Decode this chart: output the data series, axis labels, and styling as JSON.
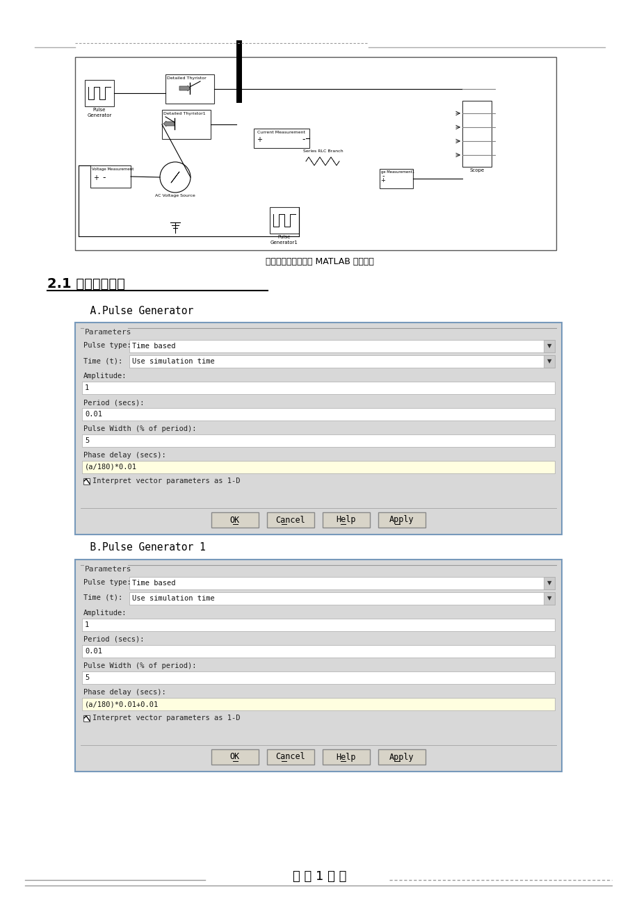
{
  "page_bg": "#ffffff",
  "caption": "单相交流调压电路的 MATLAB 俯真模型",
  "section_title": "2.1 模型参数设置",
  "subsection_A": "  A.Pulse Generator",
  "subsection_B": "  B.Pulse Generator 1",
  "dialog1_phase": "(a/180)*0.01",
  "dialog2_phase": "(a/180)*0.01+0.01",
  "dialog_fields_common": [
    {
      "row_type": "label_value",
      "label": "Pulse type:",
      "value": "Time based",
      "dropdown": true,
      "highlighted": false
    },
    {
      "row_type": "label_value",
      "label": "Time (t):",
      "value": "Use simulation time",
      "dropdown": true,
      "highlighted": false
    },
    {
      "row_type": "label_only",
      "label": "Amplitude:",
      "highlighted": false
    },
    {
      "row_type": "value_only",
      "value": "1",
      "dropdown": false,
      "highlighted": false
    },
    {
      "row_type": "label_only",
      "label": "Period (secs):",
      "highlighted": false
    },
    {
      "row_type": "value_only",
      "value": "0.01",
      "dropdown": false,
      "highlighted": false
    },
    {
      "row_type": "label_only",
      "label": "Pulse Width (% of period):",
      "highlighted": false
    },
    {
      "row_type": "value_only",
      "value": "5",
      "dropdown": false,
      "highlighted": false
    },
    {
      "row_type": "label_only",
      "label": "Phase delay (secs):",
      "highlighted": false
    }
  ],
  "checkbox_label": "Interpret vector parameters as 1-D",
  "buttons": [
    "OK",
    "Cancel",
    "Help",
    "Apply"
  ],
  "footer": "第 － 1 － 页"
}
